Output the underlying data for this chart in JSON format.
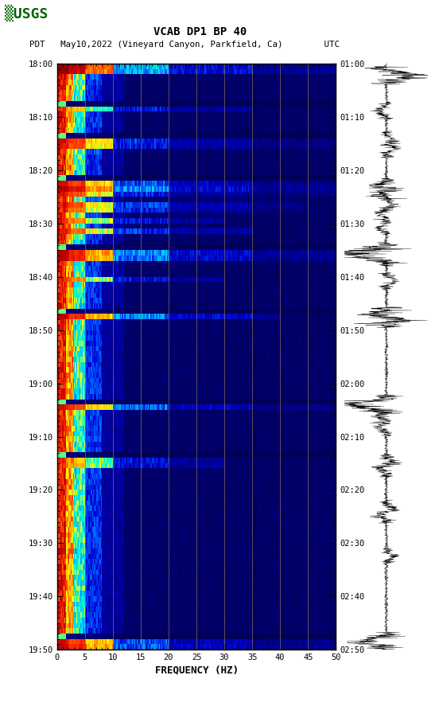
{
  "title_line1": "VCAB DP1 BP 40",
  "title_line2": "PDT   May10,2022 (Vineyard Canyon, Parkfield, Ca)        UTC",
  "xlabel": "FREQUENCY (HZ)",
  "freq_min": 0,
  "freq_max": 50,
  "freq_ticks": [
    0,
    5,
    10,
    15,
    20,
    25,
    30,
    35,
    40,
    45,
    50
  ],
  "left_time_labels": [
    "18:00",
    "18:10",
    "18:20",
    "18:30",
    "18:40",
    "18:50",
    "19:00",
    "19:10",
    "19:20",
    "19:30",
    "19:40",
    "19:50"
  ],
  "right_time_labels": [
    "01:00",
    "01:10",
    "01:20",
    "01:30",
    "01:40",
    "01:50",
    "02:00",
    "02:10",
    "02:20",
    "02:30",
    "02:40",
    "02:50"
  ],
  "background_color": "#ffffff",
  "vertical_line_color": "#8B7355",
  "vertical_line_positions": [
    5,
    10,
    15,
    20,
    25,
    30,
    35,
    40,
    45
  ],
  "n_time_bins": 110,
  "n_freq_bins": 250,
  "random_seed": 42,
  "colormap_nodes": [
    [
      0.0,
      "#000050"
    ],
    [
      0.1,
      "#000090"
    ],
    [
      0.2,
      "#0000CC"
    ],
    [
      0.3,
      "#0055FF"
    ],
    [
      0.4,
      "#00CCFF"
    ],
    [
      0.5,
      "#00FFCC"
    ],
    [
      0.58,
      "#FFFF00"
    ],
    [
      0.68,
      "#FFA000"
    ],
    [
      0.78,
      "#FF3000"
    ],
    [
      0.88,
      "#CC0000"
    ],
    [
      1.0,
      "#800000"
    ]
  ],
  "event_bands": [
    {
      "t1": 0,
      "t2": 2,
      "max_f": 50,
      "amp": 0.95,
      "spread": 0.3
    },
    {
      "t1": 8,
      "t2": 9,
      "max_f": 35,
      "amp": 0.7,
      "spread": 0.25
    },
    {
      "t1": 14,
      "t2": 15,
      "max_f": 50,
      "amp": 0.85,
      "spread": 0.2
    },
    {
      "t1": 15,
      "t2": 16,
      "max_f": 50,
      "amp": 0.8,
      "spread": 0.2
    },
    {
      "t1": 22,
      "t2": 23,
      "max_f": 50,
      "amp": 0.85,
      "spread": 0.25
    },
    {
      "t1": 23,
      "t2": 24,
      "max_f": 50,
      "amp": 0.9,
      "spread": 0.3
    },
    {
      "t1": 24,
      "t2": 25,
      "max_f": 50,
      "amp": 0.8,
      "spread": 0.2
    },
    {
      "t1": 26,
      "t2": 27,
      "max_f": 45,
      "amp": 0.8,
      "spread": 0.25
    },
    {
      "t1": 27,
      "t2": 28,
      "max_f": 45,
      "amp": 0.75,
      "spread": 0.22
    },
    {
      "t1": 29,
      "t2": 30,
      "max_f": 30,
      "amp": 0.75,
      "spread": 0.2
    },
    {
      "t1": 31,
      "t2": 32,
      "max_f": 35,
      "amp": 0.8,
      "spread": 0.25
    },
    {
      "t1": 35,
      "t2": 36,
      "max_f": 50,
      "amp": 0.9,
      "spread": 0.3
    },
    {
      "t1": 36,
      "t2": 37,
      "max_f": 50,
      "amp": 0.88,
      "spread": 0.28
    },
    {
      "t1": 40,
      "t2": 41,
      "max_f": 30,
      "amp": 0.75,
      "spread": 0.2
    },
    {
      "t1": 47,
      "t2": 48,
      "max_f": 40,
      "amp": 0.9,
      "spread": 0.3
    },
    {
      "t1": 64,
      "t2": 65,
      "max_f": 50,
      "amp": 0.85,
      "spread": 0.28
    },
    {
      "t1": 74,
      "t2": 76,
      "max_f": 30,
      "amp": 0.7,
      "spread": 0.2
    },
    {
      "t1": 108,
      "t2": 110,
      "max_f": 50,
      "amp": 0.85,
      "spread": 0.25
    }
  ],
  "dark_bands": [
    7,
    13,
    21,
    34,
    46,
    63,
    73,
    107
  ],
  "waveform_bursts": [
    {
      "t": 0.02,
      "amp": 2.5
    },
    {
      "t": 0.08,
      "amp": 0.8
    },
    {
      "t": 0.13,
      "amp": 0.7
    },
    {
      "t": 0.145,
      "amp": 0.9
    },
    {
      "t": 0.21,
      "amp": 1.0
    },
    {
      "t": 0.215,
      "amp": 1.2
    },
    {
      "t": 0.22,
      "amp": 0.9
    },
    {
      "t": 0.24,
      "amp": 0.8
    },
    {
      "t": 0.255,
      "amp": 0.7
    },
    {
      "t": 0.28,
      "amp": 0.75
    },
    {
      "t": 0.32,
      "amp": 2.0
    },
    {
      "t": 0.325,
      "amp": 1.8
    },
    {
      "t": 0.33,
      "amp": 1.5
    },
    {
      "t": 0.37,
      "amp": 0.8
    },
    {
      "t": 0.43,
      "amp": 2.5
    },
    {
      "t": 0.435,
      "amp": 2.2
    },
    {
      "t": 0.58,
      "amp": 2.0
    },
    {
      "t": 0.585,
      "amp": 1.8
    },
    {
      "t": 0.6,
      "amp": 0.9
    },
    {
      "t": 0.62,
      "amp": 0.8
    },
    {
      "t": 0.68,
      "amp": 0.9
    },
    {
      "t": 0.69,
      "amp": 0.85
    },
    {
      "t": 0.76,
      "amp": 0.8
    },
    {
      "t": 0.77,
      "amp": 0.85
    },
    {
      "t": 0.84,
      "amp": 0.7
    },
    {
      "t": 0.985,
      "amp": 1.5
    },
    {
      "t": 0.99,
      "amp": 1.2
    }
  ]
}
